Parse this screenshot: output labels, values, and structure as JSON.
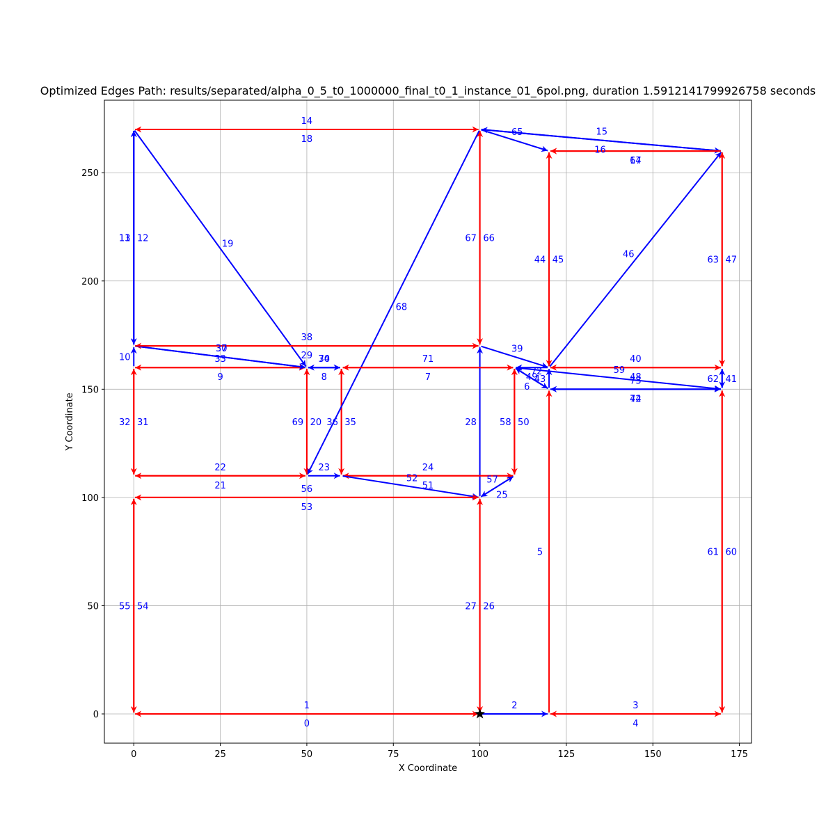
{
  "chart_data": {
    "type": "directed-graph",
    "title": "Optimized Edges Path: results/separated/alpha_0_5_t0_1000000_final_t0_1_instance_01_6pol.png, duration 1.5912141799926758 seconds",
    "xlabel": "X Coordinate",
    "ylabel": "Y Coordinate",
    "xlim": [
      -8.5,
      178.5
    ],
    "ylim": [
      -13.5,
      283.5
    ],
    "xticks": [
      0,
      25,
      50,
      75,
      100,
      125,
      150,
      175
    ],
    "yticks": [
      0,
      50,
      100,
      150,
      200,
      250
    ],
    "grid": true,
    "colors": {
      "red": "#ff0000",
      "blue": "#0000ff",
      "label": "#0000ff"
    },
    "start_marker": {
      "x": 100,
      "y": 0,
      "shape": "star"
    },
    "edges": [
      {
        "id": "0",
        "from": [
          100,
          0
        ],
        "to": [
          0,
          0
        ],
        "color": "red"
      },
      {
        "id": "1",
        "from": [
          0,
          0
        ],
        "to": [
          100,
          0
        ],
        "color": "red"
      },
      {
        "id": "2",
        "from": [
          100,
          0
        ],
        "to": [
          120,
          0
        ],
        "color": "blue"
      },
      {
        "id": "3",
        "from": [
          120,
          0
        ],
        "to": [
          170,
          0
        ],
        "color": "red"
      },
      {
        "id": "4",
        "from": [
          170,
          0
        ],
        "to": [
          120,
          0
        ],
        "color": "red"
      },
      {
        "id": "5",
        "from": [
          120,
          0
        ],
        "to": [
          120,
          150
        ],
        "color": "red"
      },
      {
        "id": "6",
        "from": [
          120,
          150
        ],
        "to": [
          110,
          160
        ],
        "color": "blue"
      },
      {
        "id": "7",
        "from": [
          110,
          160
        ],
        "to": [
          60,
          160
        ],
        "color": "red"
      },
      {
        "id": "8",
        "from": [
          60,
          160
        ],
        "to": [
          50,
          160
        ],
        "color": "blue"
      },
      {
        "id": "9",
        "from": [
          50,
          160
        ],
        "to": [
          0,
          160
        ],
        "color": "red"
      },
      {
        "id": "10",
        "from": [
          0,
          160
        ],
        "to": [
          0,
          170
        ],
        "color": "blue"
      },
      {
        "id": "11",
        "from": [
          0,
          170
        ],
        "to": [
          0,
          270
        ],
        "color": "blue"
      },
      {
        "id": "12",
        "from": [
          0,
          270
        ],
        "to": [
          0,
          170
        ],
        "color": "blue"
      },
      {
        "id": "13",
        "from": [
          0,
          170
        ],
        "to": [
          0,
          270
        ],
        "color": "blue"
      },
      {
        "id": "14",
        "from": [
          0,
          270
        ],
        "to": [
          100,
          270
        ],
        "color": "red"
      },
      {
        "id": "15",
        "from": [
          100,
          270
        ],
        "to": [
          170,
          260
        ],
        "color": "blue"
      },
      {
        "id": "16",
        "from": [
          170,
          260
        ],
        "to": [
          100,
          270
        ],
        "color": "blue"
      },
      {
        "id": "17",
        "from": [
          170,
          260
        ],
        "to": [
          120,
          260
        ],
        "color": "red"
      },
      {
        "id": "18",
        "from": [
          100,
          270
        ],
        "to": [
          0,
          270
        ],
        "color": "red"
      },
      {
        "id": "19",
        "from": [
          0,
          270
        ],
        "to": [
          50,
          160
        ],
        "color": "blue"
      },
      {
        "id": "20",
        "from": [
          50,
          160
        ],
        "to": [
          50,
          110
        ],
        "color": "red"
      },
      {
        "id": "21",
        "from": [
          50,
          110
        ],
        "to": [
          0,
          110
        ],
        "color": "red"
      },
      {
        "id": "22",
        "from": [
          0,
          110
        ],
        "to": [
          50,
          110
        ],
        "color": "red"
      },
      {
        "id": "23",
        "from": [
          50,
          110
        ],
        "to": [
          60,
          110
        ],
        "color": "blue"
      },
      {
        "id": "24",
        "from": [
          60,
          110
        ],
        "to": [
          110,
          110
        ],
        "color": "red"
      },
      {
        "id": "25",
        "from": [
          110,
          110
        ],
        "to": [
          100,
          100
        ],
        "color": "blue"
      },
      {
        "id": "26",
        "from": [
          100,
          100
        ],
        "to": [
          100,
          0
        ],
        "color": "red"
      },
      {
        "id": "27",
        "from": [
          100,
          0
        ],
        "to": [
          100,
          100
        ],
        "color": "red"
      },
      {
        "id": "28",
        "from": [
          100,
          100
        ],
        "to": [
          100,
          170
        ],
        "color": "blue"
      },
      {
        "id": "29",
        "from": [
          100,
          170
        ],
        "to": [
          0,
          170
        ],
        "color": "red"
      },
      {
        "id": "30",
        "from": [
          0,
          170
        ],
        "to": [
          50,
          160
        ],
        "color": "blue"
      },
      {
        "id": "31",
        "from": [
          0,
          160
        ],
        "to": [
          0,
          110
        ],
        "color": "red"
      },
      {
        "id": "32",
        "from": [
          0,
          110
        ],
        "to": [
          0,
          160
        ],
        "color": "red"
      },
      {
        "id": "33",
        "from": [
          0,
          160
        ],
        "to": [
          50,
          160
        ],
        "color": "red"
      },
      {
        "id": "34",
        "from": [
          50,
          160
        ],
        "to": [
          60,
          160
        ],
        "color": "blue"
      },
      {
        "id": "35",
        "from": [
          60,
          160
        ],
        "to": [
          60,
          110
        ],
        "color": "red"
      },
      {
        "id": "36",
        "from": [
          60,
          110
        ],
        "to": [
          60,
          160
        ],
        "color": "red"
      },
      {
        "id": "37",
        "from": [
          0,
          170
        ],
        "to": [
          50,
          160
        ],
        "color": "blue"
      },
      {
        "id": "38",
        "from": [
          0,
          170
        ],
        "to": [
          100,
          170
        ],
        "color": "red"
      },
      {
        "id": "39",
        "from": [
          100,
          170
        ],
        "to": [
          120,
          160
        ],
        "color": "blue"
      },
      {
        "id": "40",
        "from": [
          120,
          160
        ],
        "to": [
          170,
          160
        ],
        "color": "red"
      },
      {
        "id": "41",
        "from": [
          170,
          160
        ],
        "to": [
          170,
          150
        ],
        "color": "blue"
      },
      {
        "id": "42",
        "from": [
          170,
          150
        ],
        "to": [
          120,
          150
        ],
        "color": "blue"
      },
      {
        "id": "43",
        "from": [
          120,
          150
        ],
        "to": [
          120,
          160
        ],
        "color": "blue"
      },
      {
        "id": "44",
        "from": [
          120,
          160
        ],
        "to": [
          120,
          260
        ],
        "color": "red"
      },
      {
        "id": "45",
        "from": [
          120,
          260
        ],
        "to": [
          120,
          160
        ],
        "color": "red"
      },
      {
        "id": "46",
        "from": [
          120,
          160
        ],
        "to": [
          170,
          260
        ],
        "color": "blue"
      },
      {
        "id": "47",
        "from": [
          170,
          260
        ],
        "to": [
          170,
          160
        ],
        "color": "red"
      },
      {
        "id": "48",
        "from": [
          170,
          160
        ],
        "to": [
          120,
          160
        ],
        "color": "red"
      },
      {
        "id": "49",
        "from": [
          120,
          160
        ],
        "to": [
          110,
          160
        ],
        "color": "blue"
      },
      {
        "id": "50",
        "from": [
          110,
          160
        ],
        "to": [
          110,
          110
        ],
        "color": "red"
      },
      {
        "id": "51",
        "from": [
          110,
          110
        ],
        "to": [
          60,
          110
        ],
        "color": "red"
      },
      {
        "id": "52",
        "from": [
          60,
          110
        ],
        "to": [
          100,
          100
        ],
        "color": "blue"
      },
      {
        "id": "53",
        "from": [
          100,
          100
        ],
        "to": [
          0,
          100
        ],
        "color": "red"
      },
      {
        "id": "54",
        "from": [
          0,
          100
        ],
        "to": [
          0,
          0
        ],
        "color": "red"
      },
      {
        "id": "55",
        "from": [
          0,
          0
        ],
        "to": [
          0,
          100
        ],
        "color": "red"
      },
      {
        "id": "56",
        "from": [
          0,
          100
        ],
        "to": [
          100,
          100
        ],
        "color": "red"
      },
      {
        "id": "57",
        "from": [
          100,
          100
        ],
        "to": [
          110,
          110
        ],
        "color": "blue"
      },
      {
        "id": "58",
        "from": [
          110,
          110
        ],
        "to": [
          110,
          160
        ],
        "color": "red"
      },
      {
        "id": "59",
        "from": [
          110,
          160
        ],
        "to": [
          170,
          150
        ],
        "color": "blue"
      },
      {
        "id": "60",
        "from": [
          170,
          150
        ],
        "to": [
          170,
          0
        ],
        "color": "red"
      },
      {
        "id": "61",
        "from": [
          170,
          0
        ],
        "to": [
          170,
          150
        ],
        "color": "red"
      },
      {
        "id": "62",
        "from": [
          170,
          150
        ],
        "to": [
          170,
          160
        ],
        "color": "blue"
      },
      {
        "id": "63",
        "from": [
          170,
          160
        ],
        "to": [
          170,
          260
        ],
        "color": "red"
      },
      {
        "id": "64",
        "from": [
          170,
          260
        ],
        "to": [
          120,
          260
        ],
        "color": "red"
      },
      {
        "id": "65",
        "from": [
          100,
          270
        ],
        "to": [
          120,
          260
        ],
        "color": "blue"
      },
      {
        "id": "66",
        "from": [
          100,
          270
        ],
        "to": [
          100,
          170
        ],
        "color": "red"
      },
      {
        "id": "67",
        "from": [
          100,
          170
        ],
        "to": [
          100,
          270
        ],
        "color": "red"
      },
      {
        "id": "68",
        "from": [
          100,
          270
        ],
        "to": [
          50,
          110
        ],
        "color": "blue"
      },
      {
        "id": "69",
        "from": [
          50,
          110
        ],
        "to": [
          50,
          160
        ],
        "color": "red"
      },
      {
        "id": "70",
        "from": [
          50,
          160
        ],
        "to": [
          60,
          160
        ],
        "color": "blue"
      },
      {
        "id": "71",
        "from": [
          60,
          160
        ],
        "to": [
          110,
          160
        ],
        "color": "red"
      },
      {
        "id": "72",
        "from": [
          110,
          160
        ],
        "to": [
          120,
          150
        ],
        "color": "blue"
      },
      {
        "id": "73",
        "from": [
          120,
          150
        ],
        "to": [
          170,
          150
        ],
        "color": "blue"
      },
      {
        "id": "74",
        "from": [
          170,
          150
        ],
        "to": [
          120,
          150
        ],
        "color": "blue"
      }
    ]
  }
}
